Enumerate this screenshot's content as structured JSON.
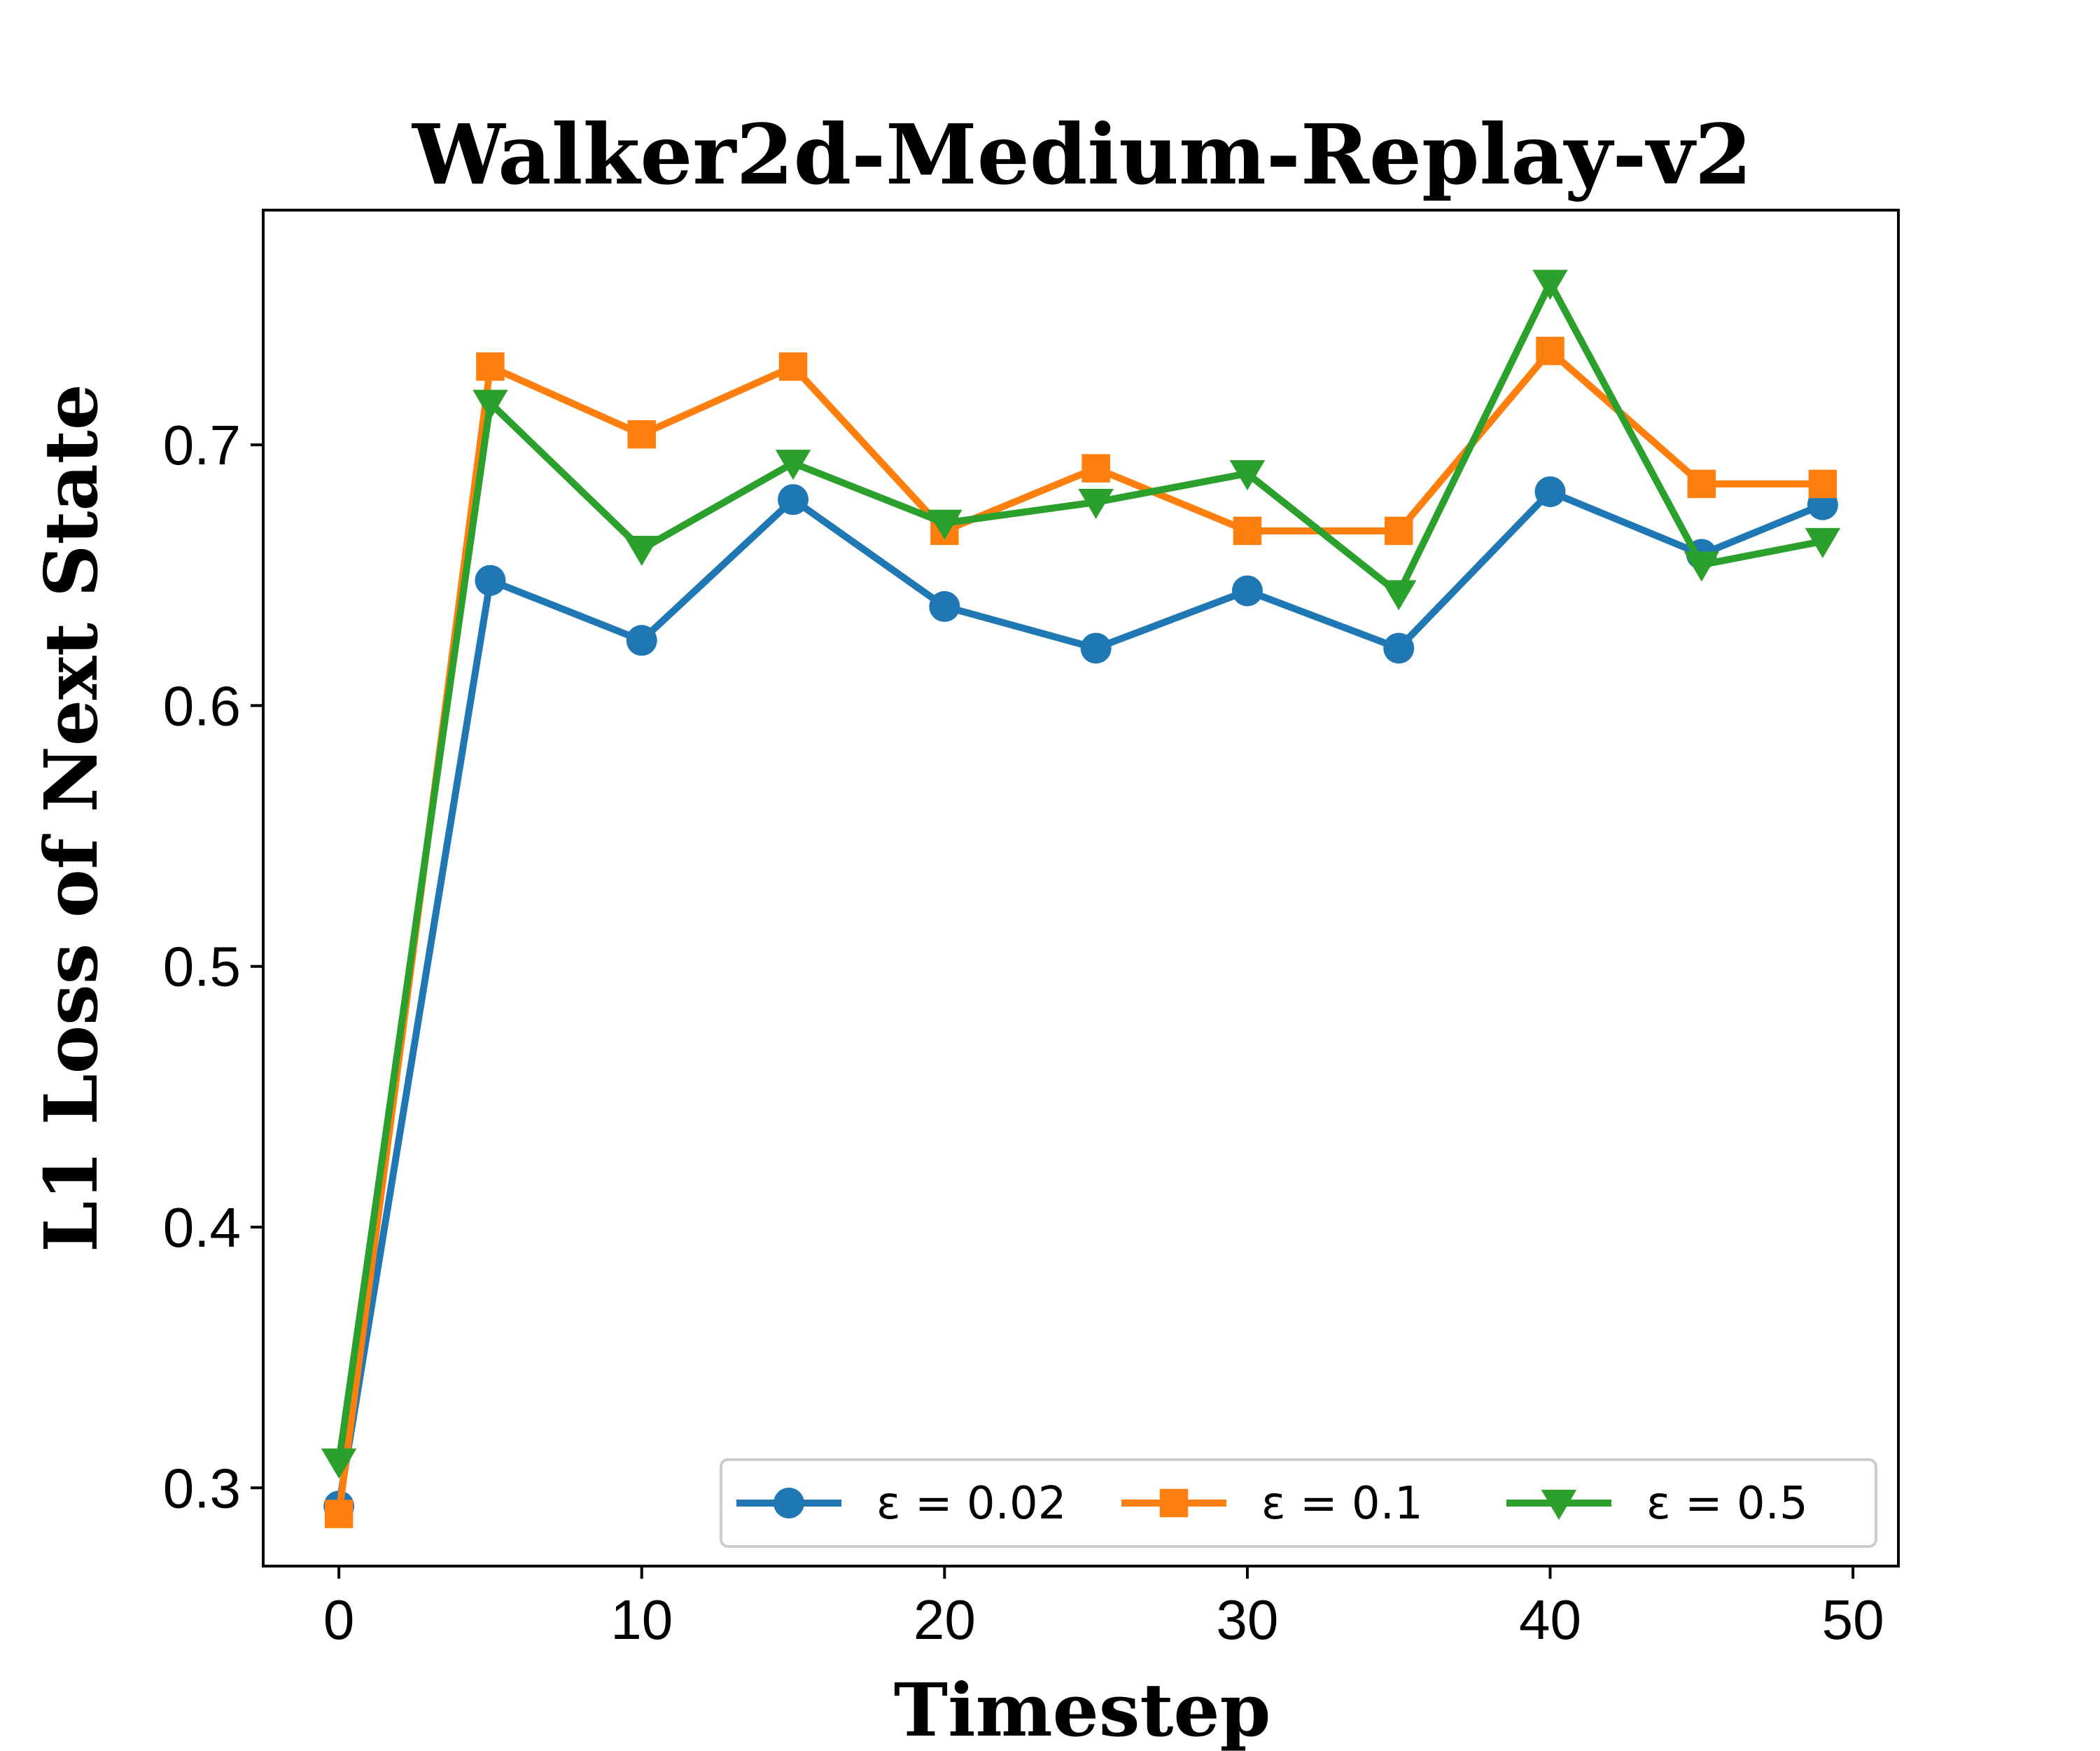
{
  "chart_data": {
    "type": "line",
    "title": "Walker2d-Medium-Replay-v2",
    "xlabel": "Timestep",
    "ylabel": "L1 Loss of Next State",
    "xlim": [
      -2.5,
      51.5
    ],
    "ylim": [
      0.27,
      0.79
    ],
    "xticks": [
      0,
      10,
      20,
      30,
      40,
      50
    ],
    "yticks": [
      0.3,
      0.4,
      0.5,
      0.6,
      0.7
    ],
    "xtick_labels": [
      "0",
      "10",
      "20",
      "30",
      "40",
      "50"
    ],
    "ytick_labels": [
      "0.3",
      "0.4",
      "0.5",
      "0.6",
      "0.7"
    ],
    "grid": false,
    "legend": {
      "placement": "lower-right",
      "columns": 3
    },
    "x": [
      0,
      5,
      10,
      15,
      20,
      25,
      30,
      35,
      40,
      45,
      49
    ],
    "series": [
      {
        "name": "ε = 0.02",
        "color": "#1f77b4",
        "marker": "circle",
        "values": [
          0.293,
          0.648,
          0.625,
          0.679,
          0.638,
          0.622,
          0.644,
          0.622,
          0.682,
          0.658,
          0.677
        ]
      },
      {
        "name": "ε = 0.1",
        "color": "#ff7f0e",
        "marker": "square",
        "values": [
          0.29,
          0.73,
          0.704,
          0.73,
          0.667,
          0.691,
          0.667,
          0.667,
          0.736,
          0.685,
          0.685
        ]
      },
      {
        "name": "ε = 0.5",
        "color": "#2ca02c",
        "marker": "triangle-down",
        "values": [
          0.31,
          0.716,
          0.66,
          0.693,
          0.67,
          0.678,
          0.689,
          0.643,
          0.762,
          0.654,
          0.663
        ]
      }
    ]
  }
}
